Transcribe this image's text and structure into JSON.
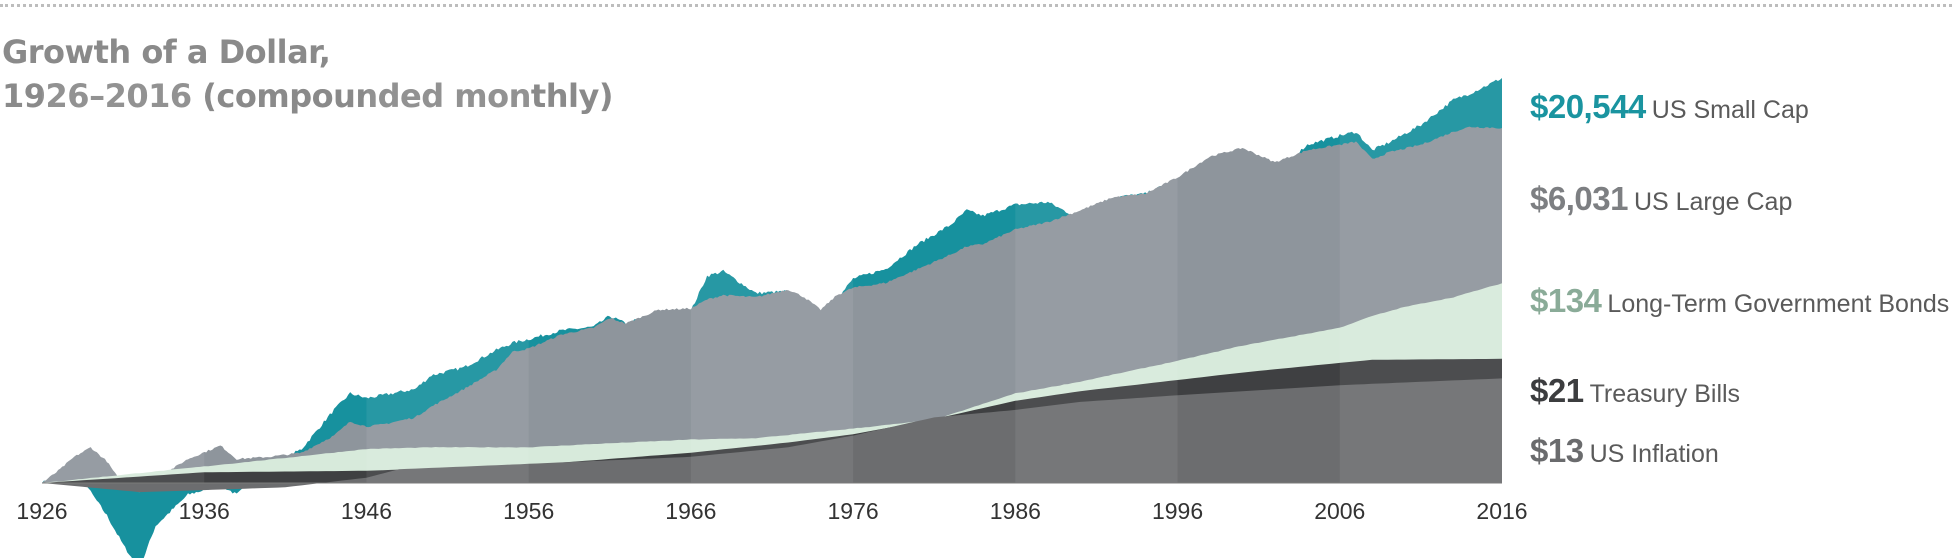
{
  "title_line1": "Growth of a Dollar,",
  "title_line2": "1926–2016 (compounded monthly)",
  "chart_data": {
    "type": "area",
    "title": "Growth of a Dollar, 1926–2016 (compounded monthly)",
    "x_ticks": [
      "1926",
      "1936",
      "1946",
      "1956",
      "1966",
      "1976",
      "1986",
      "1996",
      "2006",
      "2016"
    ],
    "xlim": [
      1926,
      2016
    ],
    "y_scale": "log",
    "grid": false,
    "legend_placement": "right",
    "series": [
      {
        "name": "US Small Cap",
        "final_value_label": "$20,544",
        "final_value": 20544,
        "color": "#17919e",
        "x": [
          1926,
          1927,
          1928,
          1929,
          1930,
          1931,
          1932,
          1933,
          1935,
          1937,
          1938,
          1940,
          1942,
          1944,
          1945,
          1946,
          1947,
          1949,
          1950,
          1952,
          1954,
          1955,
          1956,
          1958,
          1960,
          1961,
          1962,
          1964,
          1966,
          1967,
          1968,
          1970,
          1972,
          1973,
          1974,
          1975,
          1976,
          1978,
          1980,
          1982,
          1983,
          1984,
          1986,
          1988,
          1990,
          1992,
          1994,
          1996,
          1998,
          2000,
          2002,
          2004,
          2006,
          2007,
          2008,
          2009,
          2011,
          2013,
          2014,
          2016
        ],
        "values": [
          1,
          1.25,
          1.6,
          0.8,
          0.45,
          0.22,
          0.12,
          0.35,
          0.75,
          0.95,
          0.75,
          1.5,
          2.3,
          6,
          9,
          8,
          8.6,
          10,
          14,
          17,
          26,
          31,
          34,
          42,
          46,
          60,
          50,
          65,
          68,
          160,
          180,
          105,
          110,
          75,
          55,
          90,
          150,
          190,
          350,
          560,
          800,
          700,
          920,
          980,
          650,
          1100,
          1200,
          1700,
          1650,
          2200,
          2000,
          4000,
          5000,
          5500,
          3500,
          4200,
          6500,
          12000,
          14000,
          20544
        ]
      },
      {
        "name": "US Large Cap",
        "final_value_label": "$6,031",
        "final_value": 6031,
        "color": "#8e959c",
        "x": [
          1926,
          1927,
          1928,
          1929,
          1930,
          1931,
          1932,
          1933,
          1935,
          1937,
          1938,
          1940,
          1942,
          1944,
          1945,
          1946,
          1947,
          1949,
          1950,
          1952,
          1954,
          1955,
          1956,
          1958,
          1960,
          1961,
          1962,
          1964,
          1966,
          1967,
          1968,
          1970,
          1972,
          1973,
          1974,
          1975,
          1976,
          1978,
          1980,
          1982,
          1983,
          1984,
          1986,
          1988,
          1990,
          1992,
          1994,
          1996,
          1998,
          2000,
          2002,
          2004,
          2006,
          2007,
          2008,
          2009,
          2011,
          2013,
          2014,
          2016
        ],
        "values": [
          1,
          1.35,
          1.9,
          2.4,
          1.7,
          0.95,
          0.8,
          1.1,
          1.8,
          2.5,
          1.8,
          1.9,
          2.1,
          3.2,
          4.5,
          4.0,
          4.2,
          5.0,
          6.5,
          10,
          16,
          25,
          27,
          38,
          45,
          57,
          50,
          70,
          72,
          90,
          100,
          95,
          115,
          95,
          70,
          100,
          120,
          135,
          190,
          270,
          330,
          350,
          500,
          600,
          800,
          1100,
          1200,
          1800,
          3000,
          3700,
          2600,
          3500,
          4000,
          4300,
          2800,
          3300,
          4000,
          5500,
          6200,
          6031
        ]
      },
      {
        "name": "Long-Term Government Bonds",
        "final_value_label": "$134",
        "final_value": 134,
        "color": "#d7eadb",
        "x": [
          1926,
          1936,
          1941,
          1946,
          1950,
          1956,
          1960,
          1966,
          1970,
          1976,
          1981,
          1986,
          1990,
          1996,
          2000,
          2006,
          2008,
          2010,
          2013,
          2016
        ],
        "values": [
          1,
          1.5,
          1.85,
          2.3,
          2.4,
          2.4,
          2.6,
          2.9,
          3.0,
          3.8,
          4.7,
          9.0,
          12,
          20,
          29,
          45,
          60,
          75,
          95,
          134
        ]
      },
      {
        "name": "Treasury Bills",
        "final_value_label": "$21",
        "final_value": 21,
        "color": "#3f4042",
        "x": [
          1926,
          1936,
          1946,
          1956,
          1966,
          1972,
          1976,
          1981,
          1986,
          1990,
          1996,
          2000,
          2006,
          2008,
          2016
        ],
        "values": [
          1,
          1.3,
          1.35,
          1.55,
          2.1,
          2.7,
          3.3,
          4.8,
          7.5,
          9.5,
          12.5,
          15,
          19,
          20.5,
          21
        ]
      },
      {
        "name": "US Inflation",
        "final_value_label": "$13",
        "final_value": 13,
        "color": "#6c6d6f",
        "x": [
          1926,
          1932,
          1936,
          1941,
          1946,
          1948,
          1956,
          1966,
          1972,
          1976,
          1981,
          1986,
          1990,
          1996,
          2000,
          2006,
          2016
        ],
        "values": [
          1,
          0.8,
          0.84,
          0.9,
          1.14,
          1.4,
          1.6,
          1.9,
          2.4,
          3.2,
          5.0,
          6.0,
          7.3,
          8.6,
          9.5,
          11,
          13
        ]
      }
    ]
  },
  "colors": {
    "small_cap_value": "#1a94a0",
    "large_cap_value": "#7d7f82",
    "bonds_value": "#8aab98",
    "bills_value": "#3c3d3f",
    "inflation_value": "#6a6b6d"
  }
}
